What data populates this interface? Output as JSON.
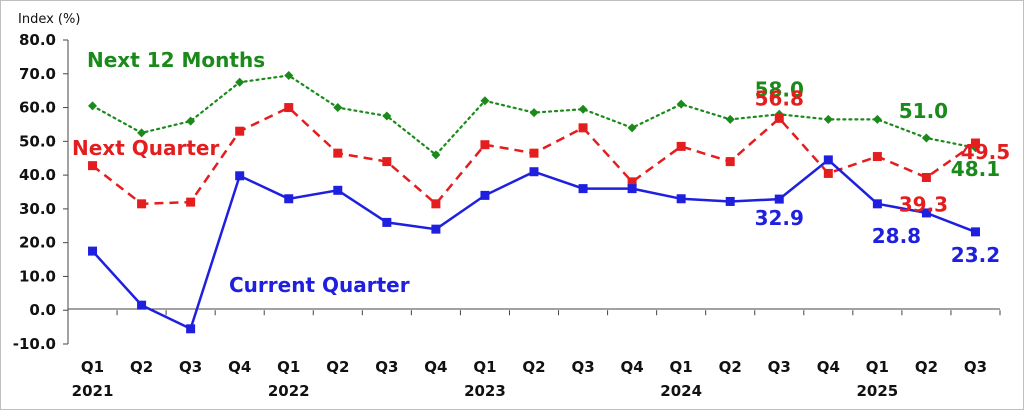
{
  "chart_data": {
    "type": "line",
    "title": "",
    "ylabel": "Index (%)",
    "xlabel": "",
    "ylim": [
      -10,
      80
    ],
    "yticks": [
      "-10.0",
      "0.0",
      "10.0",
      "20.0",
      "30.0",
      "40.0",
      "50.0",
      "60.0",
      "70.0",
      "80.0"
    ],
    "grid": false,
    "categories": [
      "Q1",
      "Q2",
      "Q3",
      "Q4",
      "Q1",
      "Q2",
      "Q3",
      "Q4",
      "Q1",
      "Q2",
      "Q3",
      "Q4",
      "Q1",
      "Q2",
      "Q3",
      "Q4",
      "Q1",
      "Q2",
      "Q3"
    ],
    "years": [
      {
        "label": "2021",
        "index": 0
      },
      {
        "label": "2022",
        "index": 4
      },
      {
        "label": "2023",
        "index": 8
      },
      {
        "label": "2024",
        "index": 12
      },
      {
        "label": "2025",
        "index": 16
      }
    ],
    "series": [
      {
        "name": "Next 12 Months",
        "color": "#1a8a1a",
        "dash": "dotted",
        "marker": "diamond",
        "values": [
          60.5,
          52.5,
          56.0,
          67.5,
          69.5,
          60.0,
          57.5,
          46.0,
          62.0,
          58.5,
          59.5,
          54.0,
          61.0,
          56.5,
          58.0,
          56.5,
          56.5,
          51.0,
          48.1
        ]
      },
      {
        "name": "Next Quarter",
        "color": "#e41e1e",
        "dash": "dashed",
        "marker": "square",
        "values": [
          42.8,
          31.5,
          32.0,
          53.0,
          60.0,
          46.5,
          44.0,
          31.5,
          49.0,
          46.5,
          54.0,
          38.0,
          48.5,
          44.0,
          56.8,
          40.5,
          45.5,
          39.3,
          49.5
        ]
      },
      {
        "name": "Current Quarter",
        "color": "#1f1fe0",
        "dash": "solid",
        "marker": "square",
        "values": [
          17.5,
          1.5,
          -5.5,
          39.8,
          33.0,
          35.5,
          26.0,
          24.0,
          34.0,
          41.0,
          36.0,
          36.0,
          33.0,
          32.2,
          32.9,
          44.5,
          31.5,
          28.8,
          23.2
        ]
      }
    ],
    "annotations": [
      {
        "series": 0,
        "index": 14,
        "text": "58.0"
      },
      {
        "series": 0,
        "index": 17,
        "text": "51.0"
      },
      {
        "series": 0,
        "index": 18,
        "text": "48.1"
      },
      {
        "series": 1,
        "index": 14,
        "text": "56.8"
      },
      {
        "series": 1,
        "index": 17,
        "text": "39.3"
      },
      {
        "series": 1,
        "index": 18,
        "text": "49.5"
      },
      {
        "series": 2,
        "index": 14,
        "text": "32.9"
      },
      {
        "series": 2,
        "index": 17,
        "text": "28.8"
      },
      {
        "series": 2,
        "index": 18,
        "text": "23.2"
      }
    ]
  }
}
